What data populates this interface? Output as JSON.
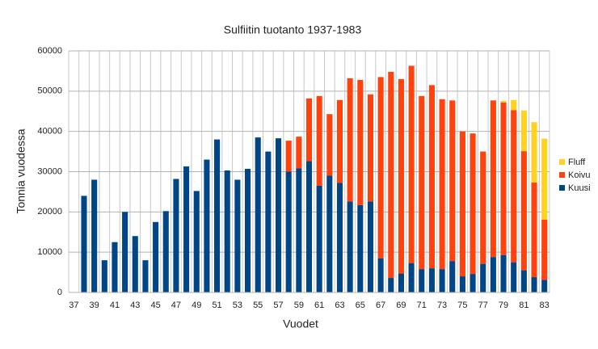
{
  "chart_data": {
    "type": "bar",
    "stacked": true,
    "title": "Sulfiitin tuotanto 1937-1983",
    "x_label": "Vuodet",
    "y_label": "Tonnia vuodessa",
    "categories": [
      "37",
      null,
      "39",
      null,
      "41",
      null,
      "43",
      null,
      "45",
      null,
      "47",
      null,
      "49",
      null,
      "51",
      null,
      "53",
      null,
      "55",
      null,
      "57",
      null,
      "59",
      null,
      "61",
      null,
      "63",
      null,
      "65",
      null,
      "67",
      null,
      "69",
      null,
      "71",
      null,
      "73",
      null,
      "75",
      null,
      "77",
      null,
      "79",
      null,
      "81",
      null,
      "83"
    ],
    "series": [
      {
        "name": "Kuusi",
        "color": "#004586",
        "values": [
          null,
          24000,
          28000,
          8000,
          12500,
          20000,
          14000,
          8000,
          17500,
          20200,
          28200,
          31300,
          25200,
          33000,
          38000,
          30300,
          28000,
          30700,
          38500,
          35000,
          38300,
          30000,
          30800,
          32600,
          26500,
          29000,
          27200,
          22600,
          21700,
          22600,
          8500,
          3600,
          4700,
          7300,
          5800,
          6000,
          5800,
          7800,
          4000,
          4600,
          7100,
          8800,
          9300,
          7500,
          5500,
          3800,
          3100
        ]
      },
      {
        "name": "Koivu",
        "color": "#ff420e",
        "values": [
          null,
          null,
          null,
          null,
          null,
          null,
          null,
          null,
          null,
          null,
          null,
          null,
          null,
          null,
          null,
          null,
          null,
          null,
          null,
          null,
          null,
          7700,
          7900,
          15600,
          22300,
          15300,
          20600,
          30600,
          31100,
          26600,
          45000,
          51200,
          48300,
          49000,
          43000,
          45500,
          42200,
          39900,
          36000,
          34900,
          27900,
          38900,
          37900,
          37800,
          29600,
          23500,
          15000
        ]
      },
      {
        "name": "Fluff",
        "color": "#ffd320",
        "values": [
          null,
          null,
          null,
          null,
          null,
          null,
          null,
          null,
          null,
          null,
          null,
          null,
          null,
          null,
          null,
          null,
          null,
          null,
          null,
          null,
          null,
          null,
          null,
          null,
          null,
          null,
          null,
          null,
          null,
          null,
          null,
          null,
          null,
          null,
          null,
          null,
          null,
          null,
          null,
          null,
          null,
          null,
          400,
          2500,
          10100,
          15000,
          20100
        ]
      }
    ],
    "ylim": [
      0,
      60000
    ],
    "yticks": [
      0,
      10000,
      20000,
      30000,
      40000,
      50000,
      60000
    ],
    "grid": true,
    "legend": "right"
  }
}
